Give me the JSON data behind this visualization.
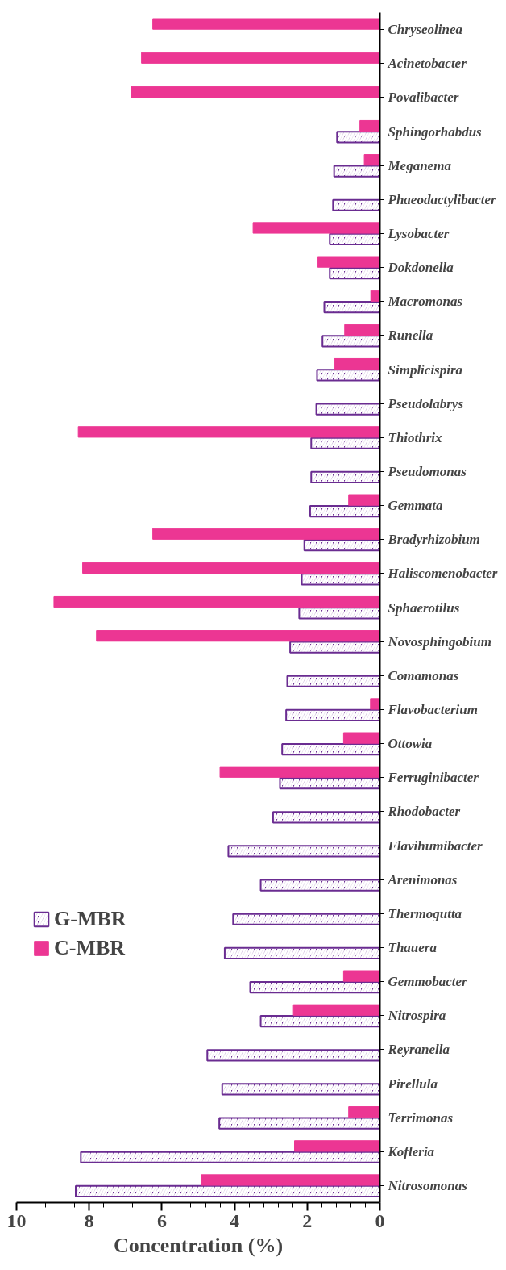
{
  "chart_data": {
    "type": "bar",
    "orientation": "horizontal",
    "xlabel": "Concentration (%)",
    "categories": [
      "Chryseolinea",
      "Acinetobacter",
      "Povalibacter",
      "Sphingorhabdus",
      "Meganema",
      "Phaeodactylibacter",
      "Lysobacter",
      "Dokdonella",
      "Macromonas",
      "Runella",
      "Simplicispira",
      "Pseudolabrys",
      "Thiothrix",
      "Pseudomonas",
      "Gemmata",
      "Bradyrhizobium",
      "Haliscomenobacter",
      "Sphaerotilus",
      "Novosphingobium",
      "Comamonas",
      "Flavobacterium",
      "Ottowia",
      "Ferruginibacter",
      "Rhodobacter",
      "Flavihumibacter",
      "Arenimonas",
      "Thermogutta",
      "Thauera",
      "Gemmobacter",
      "Nitrospira",
      "Reyranella",
      "Pirellula",
      "Terrimonas",
      "Kofleria",
      "Nitrosomonas"
    ],
    "series": [
      {
        "name": "G-MBR",
        "color": "#6a2c91",
        "values": [
          null,
          null,
          null,
          1.18,
          1.26,
          1.29,
          1.38,
          1.38,
          1.53,
          1.58,
          1.73,
          1.75,
          1.89,
          1.89,
          1.92,
          2.08,
          2.15,
          2.22,
          2.47,
          2.55,
          2.58,
          2.69,
          2.75,
          2.94,
          4.17,
          3.28,
          4.04,
          4.27,
          3.57,
          3.28,
          4.75,
          4.34,
          4.42,
          8.23,
          8.37
        ]
      },
      {
        "name": "C-MBR",
        "color": "#ec3693",
        "values": [
          6.25,
          6.56,
          6.84,
          0.55,
          0.43,
          null,
          3.49,
          1.71,
          0.25,
          0.97,
          1.25,
          null,
          8.3,
          null,
          0.86,
          6.25,
          8.18,
          8.97,
          7.8,
          null,
          0.26,
          1.0,
          4.4,
          null,
          null,
          null,
          null,
          null,
          1.0,
          2.38,
          null,
          null,
          0.86,
          2.35,
          4.91
        ]
      }
    ],
    "xlim": [
      10,
      0
    ],
    "xticks": [
      0,
      2,
      4,
      6,
      8,
      10
    ],
    "grid": false,
    "legend": "bottom left"
  }
}
